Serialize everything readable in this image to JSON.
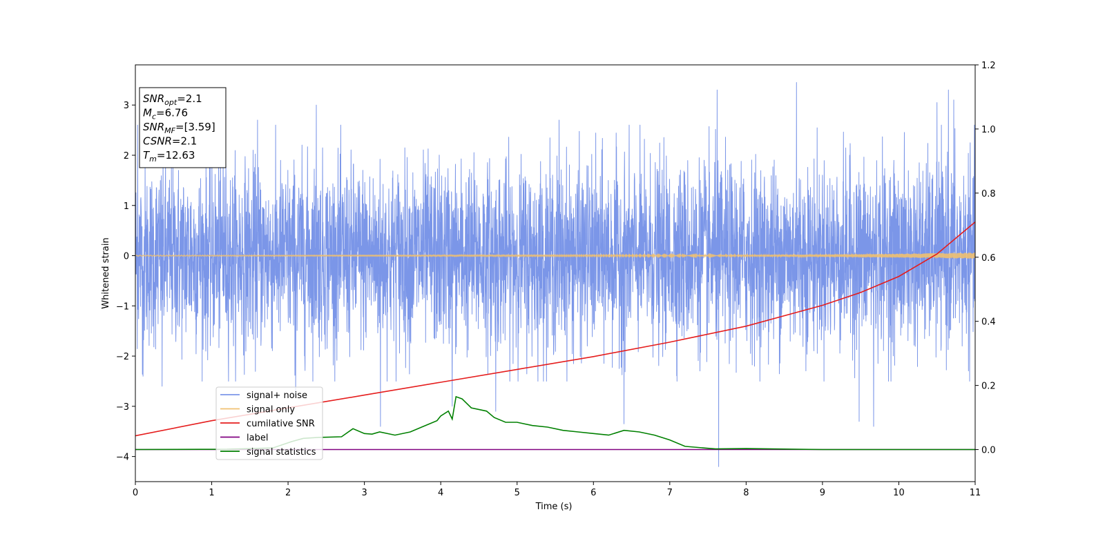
{
  "chart_data": {
    "type": "line",
    "xlabel": "Time (s)",
    "ylabel": "Whitened strain",
    "xlim": [
      0,
      11
    ],
    "ylim": [
      -4.5,
      3.8
    ],
    "y2lim": [
      -0.1,
      1.2
    ],
    "x_ticks": [
      "0",
      "1",
      "2",
      "3",
      "4",
      "5",
      "6",
      "7",
      "8",
      "9",
      "10",
      "11"
    ],
    "y_ticks": [
      "3",
      "2",
      "1",
      "0",
      "−1",
      "−2",
      "−3",
      "−4"
    ],
    "y2_ticks": [
      "1.2",
      "1.0",
      "0.8",
      "0.6",
      "0.4",
      "0.2",
      "0.0"
    ],
    "legend_position": "lower-left",
    "info_box": [
      {
        "base": "SNR",
        "sub": "opt",
        "value": "=2.1"
      },
      {
        "base": "M",
        "sub": "c",
        "value": "=6.76"
      },
      {
        "base": "SNR",
        "sub": "MF",
        "value": "=[3.59]"
      },
      {
        "base": "CSNR",
        "sub": "",
        "value": "=2.1"
      },
      {
        "base": "T",
        "sub": "m",
        "value": "=12.63"
      }
    ],
    "series": [
      {
        "name": "signal+ noise",
        "axis": "left",
        "color": "#7b96e8",
        "description_values": "dense gaussian-like noise, approx range -4.2 to 3.5",
        "spikes": [
          {
            "x": 0.03,
            "y": 2.6
          },
          {
            "x": 0.1,
            "y": -2.4
          },
          {
            "x": 0.35,
            "y": -2.6
          },
          {
            "x": 1.15,
            "y": 2.8
          },
          {
            "x": 1.6,
            "y": 2.7
          },
          {
            "x": 2.1,
            "y": -2.8
          },
          {
            "x": 2.37,
            "y": 3.0
          },
          {
            "x": 3.21,
            "y": -3.4
          },
          {
            "x": 4.15,
            "y": -3.0
          },
          {
            "x": 4.72,
            "y": -3.1
          },
          {
            "x": 5.55,
            "y": 2.7
          },
          {
            "x": 6.4,
            "y": -3.35
          },
          {
            "x": 7.62,
            "y": 3.3
          },
          {
            "x": 7.64,
            "y": -4.2
          },
          {
            "x": 8.66,
            "y": 3.45
          },
          {
            "x": 9.48,
            "y": -3.3
          },
          {
            "x": 9.67,
            "y": -3.4
          },
          {
            "x": 10.5,
            "y": 3.05
          },
          {
            "x": 10.65,
            "y": 3.3
          },
          {
            "x": 10.72,
            "y": 3.1
          },
          {
            "x": 11.0,
            "y": 2.1
          }
        ]
      },
      {
        "name": "signal only",
        "axis": "left",
        "color": "#f0c070",
        "values_note": "chirp oscillation around 0, growing amplitude",
        "x": [
          0,
          8,
          9,
          10,
          10.5,
          11
        ],
        "y_amp": [
          0.01,
          0.02,
          0.03,
          0.04,
          0.05,
          0.06
        ]
      },
      {
        "name": "cumilative SNR",
        "axis": "right",
        "color": "#e51c1c",
        "x": [
          0,
          1,
          2,
          3,
          4,
          5,
          6,
          7,
          8,
          9,
          9.5,
          10,
          10.5,
          11
        ],
        "y": [
          0.043,
          0.09,
          0.13,
          0.17,
          0.21,
          0.25,
          0.29,
          0.335,
          0.385,
          0.45,
          0.49,
          0.54,
          0.61,
          0.71
        ]
      },
      {
        "name": "label",
        "axis": "right",
        "color": "#800080",
        "x": [
          0,
          11
        ],
        "y": [
          0.0,
          0.0
        ]
      },
      {
        "name": "signal statistics",
        "axis": "right",
        "color": "#008000",
        "x": [
          0,
          1.2,
          1.8,
          2.05,
          2.2,
          2.4,
          2.7,
          2.85,
          3.0,
          3.1,
          3.2,
          3.4,
          3.6,
          3.75,
          3.85,
          3.95,
          4.0,
          4.1,
          4.15,
          4.2,
          4.28,
          4.4,
          4.6,
          4.7,
          4.85,
          5.0,
          5.2,
          5.4,
          5.6,
          5.8,
          6.0,
          6.2,
          6.4,
          6.6,
          6.8,
          7.0,
          7.2,
          7.6,
          8.0,
          9.0,
          10.0,
          11.0
        ],
        "y": [
          0.0,
          0.001,
          0.005,
          0.025,
          0.035,
          0.038,
          0.04,
          0.065,
          0.05,
          0.048,
          0.055,
          0.045,
          0.055,
          0.07,
          0.08,
          0.09,
          0.105,
          0.12,
          0.095,
          0.165,
          0.158,
          0.13,
          0.12,
          0.1,
          0.085,
          0.085,
          0.075,
          0.07,
          0.06,
          0.055,
          0.05,
          0.045,
          0.06,
          0.055,
          0.045,
          0.03,
          0.01,
          0.002,
          0.003,
          0.0,
          0.0,
          0.0
        ]
      }
    ]
  },
  "colors": {
    "noise": "#7b96e8",
    "signal": "#f0c070",
    "csnr": "#e51c1c",
    "label": "#800080",
    "stats": "#008000"
  }
}
